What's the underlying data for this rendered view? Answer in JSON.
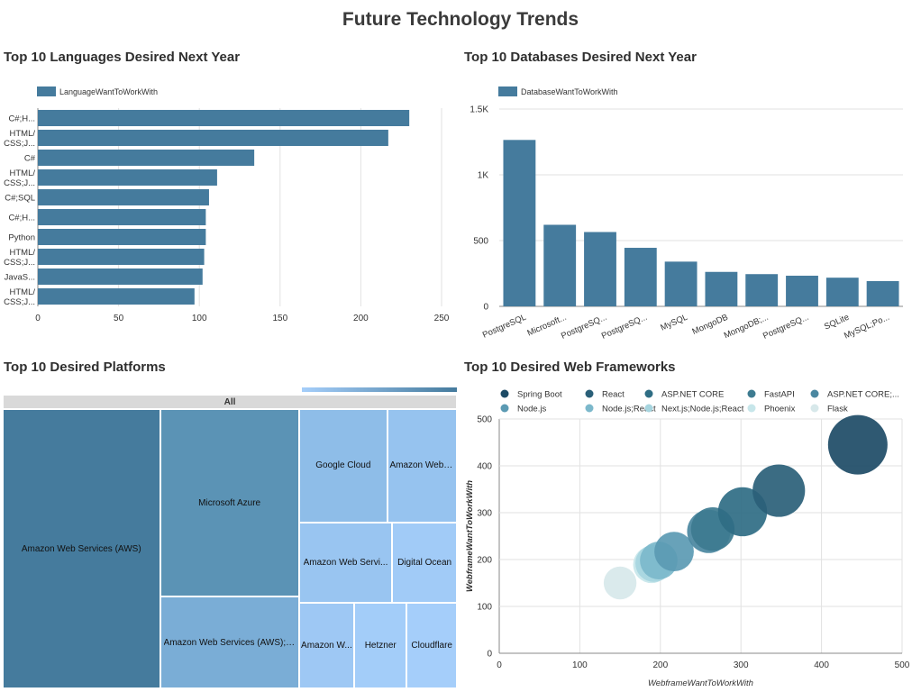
{
  "title": "Future Technology Trends",
  "charts": {
    "languages": {
      "title": "Top 10 Languages Desired Next Year",
      "legend": "LanguageWantToWorkWith",
      "color": "#457b9d",
      "chart_data": {
        "type": "bar",
        "orientation": "horizontal",
        "categories": [
          [
            "C#;H..."
          ],
          [
            "HTML/",
            "CSS;J..."
          ],
          [
            "C#"
          ],
          [
            "HTML/",
            "CSS;J..."
          ],
          [
            "C#;SQL"
          ],
          [
            "C#;H..."
          ],
          [
            "Python"
          ],
          [
            "HTML/",
            "CSS;J..."
          ],
          [
            "JavaS..."
          ],
          [
            "HTML/",
            "CSS;J..."
          ]
        ],
        "values": [
          230,
          217,
          134,
          111,
          106,
          104,
          104,
          103,
          102,
          97
        ],
        "xlim": [
          0,
          250
        ],
        "xticks": [
          0,
          50,
          100,
          150,
          200,
          250
        ],
        "grid": true,
        "legend_position": "top-left"
      }
    },
    "databases": {
      "title": "Top 10 Databases Desired Next Year",
      "legend": "DatabaseWantToWorkWith",
      "color": "#457b9d",
      "chart_data": {
        "type": "bar",
        "categories": [
          "PostgreSQL",
          "Microsoft...",
          "PostgreSQ...",
          "PostgreSQ...",
          "MySQL",
          "MongoDB",
          "MongoDB;...",
          "PostgreSQ...",
          "SQLite",
          "MySQL;Po..."
        ],
        "values": [
          1265,
          620,
          565,
          445,
          340,
          262,
          245,
          233,
          218,
          192
        ],
        "ylim": [
          0,
          1500
        ],
        "yticks": [
          0,
          500,
          1000,
          1500
        ],
        "ytick_labels": [
          "0",
          "500",
          "1K",
          "1.5K"
        ],
        "grid": true,
        "legend_position": "top-left"
      }
    },
    "platforms": {
      "title": "Top 10 Desired Platforms",
      "root_label": "All",
      "chart_data": {
        "type": "treemap",
        "root": "All",
        "items": [
          {
            "label": "Amazon Web Services (AWS)",
            "value": 1000,
            "color": "#457b9d"
          },
          {
            "label": "Microsoft Azure",
            "value": 594,
            "color": "#5b93b5"
          },
          {
            "label": "Amazon Web Services (AWS);Micr...",
            "value": 290,
            "color": "#7aadd6"
          },
          {
            "label": "Google Cloud",
            "value": 228,
            "color": "#8ebde8"
          },
          {
            "label": "Amazon Web S...",
            "value": 179,
            "color": "#96c3ef"
          },
          {
            "label": "Amazon Web Servi...",
            "value": 170,
            "color": "#99c5f1"
          },
          {
            "label": "Digital Ocean",
            "value": 118,
            "color": "#a1cbf7"
          },
          {
            "label": "Amazon W...",
            "value": 108,
            "color": "#9ec8f4"
          },
          {
            "label": "Hetzner",
            "value": 103,
            "color": "#a3cdf9"
          },
          {
            "label": "Cloudflare",
            "value": 98,
            "color": "#a5cefa"
          }
        ]
      }
    },
    "frameworks": {
      "title": "Top 10 Desired Web Frameworks",
      "chart_data": {
        "type": "scatter",
        "xlabel": "WebframeWantToWorkWith",
        "ylabel": "WebframeWantToWorkWith",
        "xlim": [
          0,
          500
        ],
        "ylim": [
          0,
          500
        ],
        "xticks": [
          0,
          100,
          200,
          300,
          400,
          500
        ],
        "yticks": [
          0,
          100,
          200,
          300,
          400,
          500
        ],
        "grid": true,
        "legend_position": "top",
        "series": [
          {
            "name": "Spring Boot",
            "x": 445,
            "y": 445,
            "color": "#1d4b66"
          },
          {
            "name": "React",
            "x": 347,
            "y": 347,
            "color": "#2a5f78"
          },
          {
            "name": "ASP.NET CORE",
            "x": 302,
            "y": 302,
            "color": "#2f6d84"
          },
          {
            "name": "FastAPI",
            "x": 265,
            "y": 265,
            "color": "#3d7b90"
          },
          {
            "name": "ASP.NET CORE;...",
            "x": 260,
            "y": 260,
            "color": "#4a87a0"
          },
          {
            "name": "Node.js",
            "x": 217,
            "y": 217,
            "color": "#5b9ab3"
          },
          {
            "name": "Node.js;React",
            "x": 198,
            "y": 198,
            "color": "#7cb8cb"
          },
          {
            "name": "Next.js;Node.js;React",
            "x": 192,
            "y": 192,
            "color": "#a7d5df"
          },
          {
            "name": "Phoenix",
            "x": 189,
            "y": 189,
            "color": "#c7e6ea"
          },
          {
            "name": "Flask",
            "x": 150,
            "y": 150,
            "color": "#d7e8ea"
          }
        ]
      }
    }
  }
}
